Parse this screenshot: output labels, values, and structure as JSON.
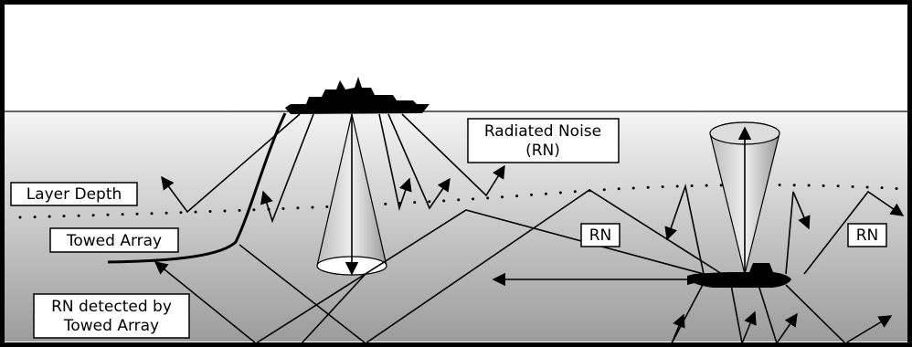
{
  "labels": [
    {
      "lines": [
        "Radiated Noise",
        "(RN)"
      ]
    },
    {
      "lines": [
        "Layer Depth"
      ]
    },
    {
      "lines": [
        "Towed Array"
      ]
    },
    {
      "lines": [
        "RN"
      ]
    },
    {
      "lines": [
        "RN"
      ]
    },
    {
      "lines": [
        "RN detected by",
        "Towed Array"
      ]
    }
  ]
}
